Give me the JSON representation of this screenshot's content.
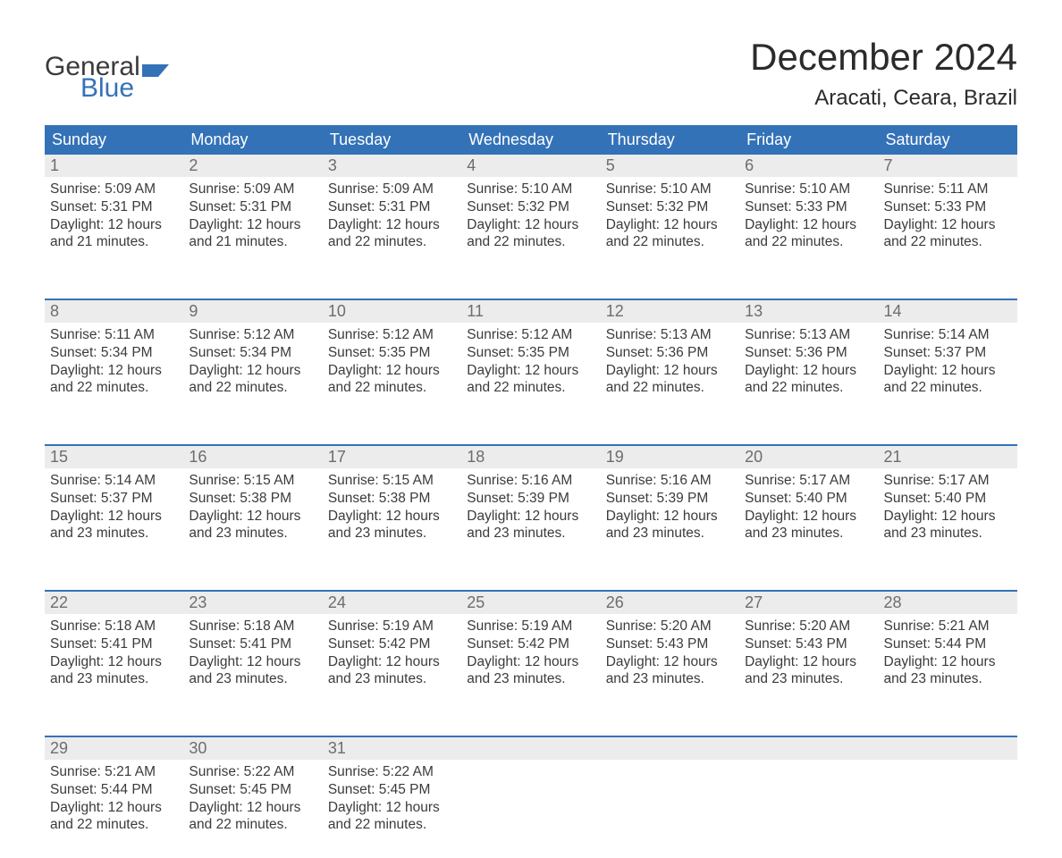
{
  "logo": {
    "line1": "General",
    "line2": "Blue",
    "shape_color": "#3472b8",
    "text1_color": "#3b3b3b",
    "text2_color": "#3472b8"
  },
  "header": {
    "month_title": "December 2024",
    "location": "Aracati, Ceara, Brazil"
  },
  "colors": {
    "header_bg": "#3472b8",
    "header_text": "#ffffff",
    "daynum_bg": "#ececec",
    "daynum_text": "#6d6d6d",
    "body_text": "#3b3b3b",
    "week_border": "#3472b8",
    "page_bg": "#ffffff"
  },
  "weekdays": [
    "Sunday",
    "Monday",
    "Tuesday",
    "Wednesday",
    "Thursday",
    "Friday",
    "Saturday"
  ],
  "weeks": [
    [
      {
        "n": "1",
        "sunrise": "Sunrise: 5:09 AM",
        "sunset": "Sunset: 5:31 PM",
        "day1": "Daylight: 12 hours",
        "day2": "and 21 minutes."
      },
      {
        "n": "2",
        "sunrise": "Sunrise: 5:09 AM",
        "sunset": "Sunset: 5:31 PM",
        "day1": "Daylight: 12 hours",
        "day2": "and 21 minutes."
      },
      {
        "n": "3",
        "sunrise": "Sunrise: 5:09 AM",
        "sunset": "Sunset: 5:31 PM",
        "day1": "Daylight: 12 hours",
        "day2": "and 22 minutes."
      },
      {
        "n": "4",
        "sunrise": "Sunrise: 5:10 AM",
        "sunset": "Sunset: 5:32 PM",
        "day1": "Daylight: 12 hours",
        "day2": "and 22 minutes."
      },
      {
        "n": "5",
        "sunrise": "Sunrise: 5:10 AM",
        "sunset": "Sunset: 5:32 PM",
        "day1": "Daylight: 12 hours",
        "day2": "and 22 minutes."
      },
      {
        "n": "6",
        "sunrise": "Sunrise: 5:10 AM",
        "sunset": "Sunset: 5:33 PM",
        "day1": "Daylight: 12 hours",
        "day2": "and 22 minutes."
      },
      {
        "n": "7",
        "sunrise": "Sunrise: 5:11 AM",
        "sunset": "Sunset: 5:33 PM",
        "day1": "Daylight: 12 hours",
        "day2": "and 22 minutes."
      }
    ],
    [
      {
        "n": "8",
        "sunrise": "Sunrise: 5:11 AM",
        "sunset": "Sunset: 5:34 PM",
        "day1": "Daylight: 12 hours",
        "day2": "and 22 minutes."
      },
      {
        "n": "9",
        "sunrise": "Sunrise: 5:12 AM",
        "sunset": "Sunset: 5:34 PM",
        "day1": "Daylight: 12 hours",
        "day2": "and 22 minutes."
      },
      {
        "n": "10",
        "sunrise": "Sunrise: 5:12 AM",
        "sunset": "Sunset: 5:35 PM",
        "day1": "Daylight: 12 hours",
        "day2": "and 22 minutes."
      },
      {
        "n": "11",
        "sunrise": "Sunrise: 5:12 AM",
        "sunset": "Sunset: 5:35 PM",
        "day1": "Daylight: 12 hours",
        "day2": "and 22 minutes."
      },
      {
        "n": "12",
        "sunrise": "Sunrise: 5:13 AM",
        "sunset": "Sunset: 5:36 PM",
        "day1": "Daylight: 12 hours",
        "day2": "and 22 minutes."
      },
      {
        "n": "13",
        "sunrise": "Sunrise: 5:13 AM",
        "sunset": "Sunset: 5:36 PM",
        "day1": "Daylight: 12 hours",
        "day2": "and 22 minutes."
      },
      {
        "n": "14",
        "sunrise": "Sunrise: 5:14 AM",
        "sunset": "Sunset: 5:37 PM",
        "day1": "Daylight: 12 hours",
        "day2": "and 22 minutes."
      }
    ],
    [
      {
        "n": "15",
        "sunrise": "Sunrise: 5:14 AM",
        "sunset": "Sunset: 5:37 PM",
        "day1": "Daylight: 12 hours",
        "day2": "and 23 minutes."
      },
      {
        "n": "16",
        "sunrise": "Sunrise: 5:15 AM",
        "sunset": "Sunset: 5:38 PM",
        "day1": "Daylight: 12 hours",
        "day2": "and 23 minutes."
      },
      {
        "n": "17",
        "sunrise": "Sunrise: 5:15 AM",
        "sunset": "Sunset: 5:38 PM",
        "day1": "Daylight: 12 hours",
        "day2": "and 23 minutes."
      },
      {
        "n": "18",
        "sunrise": "Sunrise: 5:16 AM",
        "sunset": "Sunset: 5:39 PM",
        "day1": "Daylight: 12 hours",
        "day2": "and 23 minutes."
      },
      {
        "n": "19",
        "sunrise": "Sunrise: 5:16 AM",
        "sunset": "Sunset: 5:39 PM",
        "day1": "Daylight: 12 hours",
        "day2": "and 23 minutes."
      },
      {
        "n": "20",
        "sunrise": "Sunrise: 5:17 AM",
        "sunset": "Sunset: 5:40 PM",
        "day1": "Daylight: 12 hours",
        "day2": "and 23 minutes."
      },
      {
        "n": "21",
        "sunrise": "Sunrise: 5:17 AM",
        "sunset": "Sunset: 5:40 PM",
        "day1": "Daylight: 12 hours",
        "day2": "and 23 minutes."
      }
    ],
    [
      {
        "n": "22",
        "sunrise": "Sunrise: 5:18 AM",
        "sunset": "Sunset: 5:41 PM",
        "day1": "Daylight: 12 hours",
        "day2": "and 23 minutes."
      },
      {
        "n": "23",
        "sunrise": "Sunrise: 5:18 AM",
        "sunset": "Sunset: 5:41 PM",
        "day1": "Daylight: 12 hours",
        "day2": "and 23 minutes."
      },
      {
        "n": "24",
        "sunrise": "Sunrise: 5:19 AM",
        "sunset": "Sunset: 5:42 PM",
        "day1": "Daylight: 12 hours",
        "day2": "and 23 minutes."
      },
      {
        "n": "25",
        "sunrise": "Sunrise: 5:19 AM",
        "sunset": "Sunset: 5:42 PM",
        "day1": "Daylight: 12 hours",
        "day2": "and 23 minutes."
      },
      {
        "n": "26",
        "sunrise": "Sunrise: 5:20 AM",
        "sunset": "Sunset: 5:43 PM",
        "day1": "Daylight: 12 hours",
        "day2": "and 23 minutes."
      },
      {
        "n": "27",
        "sunrise": "Sunrise: 5:20 AM",
        "sunset": "Sunset: 5:43 PM",
        "day1": "Daylight: 12 hours",
        "day2": "and 23 minutes."
      },
      {
        "n": "28",
        "sunrise": "Sunrise: 5:21 AM",
        "sunset": "Sunset: 5:44 PM",
        "day1": "Daylight: 12 hours",
        "day2": "and 23 minutes."
      }
    ],
    [
      {
        "n": "29",
        "sunrise": "Sunrise: 5:21 AM",
        "sunset": "Sunset: 5:44 PM",
        "day1": "Daylight: 12 hours",
        "day2": "and 22 minutes."
      },
      {
        "n": "30",
        "sunrise": "Sunrise: 5:22 AM",
        "sunset": "Sunset: 5:45 PM",
        "day1": "Daylight: 12 hours",
        "day2": "and 22 minutes."
      },
      {
        "n": "31",
        "sunrise": "Sunrise: 5:22 AM",
        "sunset": "Sunset: 5:45 PM",
        "day1": "Daylight: 12 hours",
        "day2": "and 22 minutes."
      },
      {
        "n": "",
        "sunrise": "",
        "sunset": "",
        "day1": "",
        "day2": "",
        "empty": true
      },
      {
        "n": "",
        "sunrise": "",
        "sunset": "",
        "day1": "",
        "day2": "",
        "empty": true
      },
      {
        "n": "",
        "sunrise": "",
        "sunset": "",
        "day1": "",
        "day2": "",
        "empty": true
      },
      {
        "n": "",
        "sunrise": "",
        "sunset": "",
        "day1": "",
        "day2": "",
        "empty": true
      }
    ]
  ]
}
